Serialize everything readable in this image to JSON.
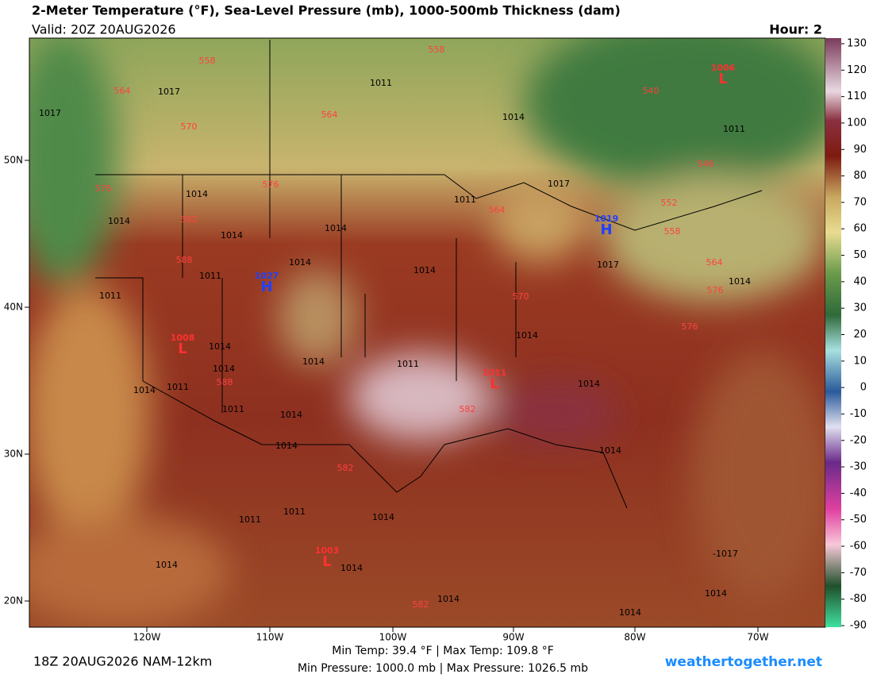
{
  "header": {
    "title": "2-Meter Temperature (°F), Sea-Level Pressure (mb), 1000-500mb Thickness (dam)",
    "valid": "Valid: 20Z 20AUG2026",
    "hour": "Hour: 2"
  },
  "colorbar": {
    "ticks": [
      130,
      120,
      110,
      100,
      90,
      80,
      70,
      60,
      50,
      40,
      30,
      20,
      10,
      0,
      -10,
      -20,
      -30,
      -40,
      -50,
      -60,
      -70,
      -80,
      -90
    ]
  },
  "lat_labels": [
    "50N",
    "40N",
    "30N",
    "20N"
  ],
  "lon_labels": [
    "120W",
    "110W",
    "100W",
    "90W",
    "80W",
    "70W"
  ],
  "pressure_labels": [
    "1017",
    "1011",
    "1017",
    "1014",
    "1011",
    "1014",
    "1011",
    "1017",
    "1014",
    "1014",
    "1014",
    "1014",
    "1014",
    "1011",
    "1011",
    "1017",
    "1014",
    "1014",
    "1014",
    "1011",
    "1014",
    "1014",
    "1011",
    "1014",
    "1011",
    "1014",
    "1014",
    "1014",
    "1014",
    "1011",
    "1011",
    "1014",
    "1014",
    "1014",
    "1014",
    "1014",
    "1014",
    "-1017"
  ],
  "thickness_labels": [
    "558",
    "558",
    "564",
    "564",
    "570",
    "576",
    "576",
    "582",
    "588",
    "564",
    "546",
    "552",
    "558",
    "564",
    "570",
    "576",
    "576",
    "582",
    "588",
    "582",
    "582",
    "540"
  ],
  "centers": [
    {
      "letter": "H",
      "value": "1027"
    },
    {
      "letter": "H",
      "value": "1019"
    },
    {
      "letter": "L",
      "value": "1008"
    },
    {
      "letter": "L",
      "value": "1011"
    },
    {
      "letter": "L",
      "value": "1006"
    },
    {
      "letter": "L",
      "value": "1003"
    }
  ],
  "footer": {
    "run": "18Z 20AUG2026 NAM-12km",
    "temps": "Min Temp:  39.4 °F | Max Temp: 109.8 °F",
    "pressures": "Min Pressure: 1000.0 mb | Max Pressure: 1026.5 mb",
    "site": "weathertogether.net"
  }
}
